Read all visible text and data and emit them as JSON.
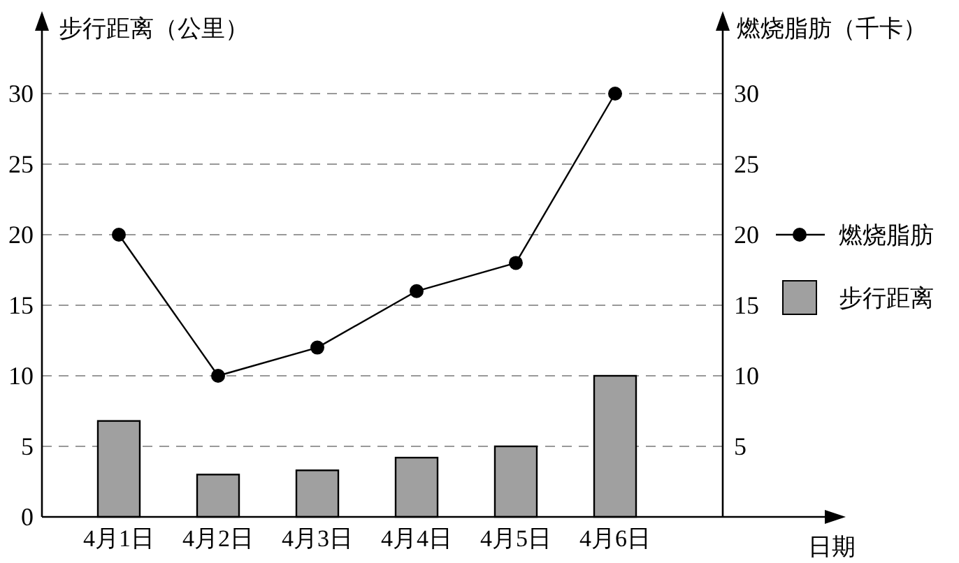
{
  "chart_data": {
    "type": "bar",
    "categories": [
      "4月1日",
      "4月2日",
      "4月3日",
      "4月4日",
      "4月5日",
      "4月6日"
    ],
    "series": [
      {
        "name": "步行距离",
        "color": "#a0a0a0",
        "values": [
          6.8,
          3,
          3.3,
          4.2,
          5,
          10
        ]
      },
      {
        "name": "燃烧脂肪",
        "type": "line",
        "color": "#000000",
        "values": [
          20,
          10,
          12,
          16,
          18,
          30
        ]
      }
    ],
    "ylabel": "步行距离（公里）",
    "y2label": "燃烧脂肪（千卡）",
    "xlabel": "日期",
    "ylim": [
      0,
      35
    ],
    "yticks": [
      0,
      5,
      10,
      15,
      20,
      25,
      30
    ],
    "y2lim": [
      0,
      35
    ],
    "y2ticks": [
      5,
      10,
      15,
      20,
      25,
      30
    ],
    "grid": "y",
    "legend": "right",
    "marker": "circle",
    "line_style": "solid"
  }
}
